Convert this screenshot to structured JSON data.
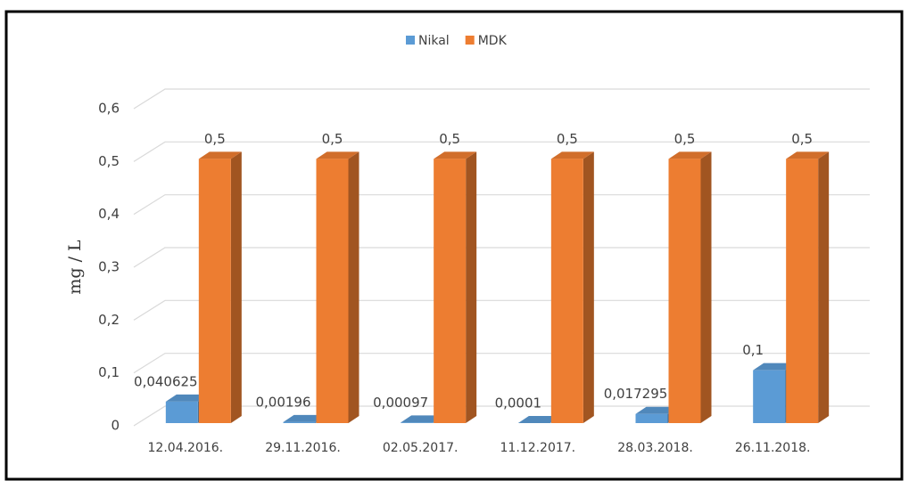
{
  "chart_data": {
    "type": "bar3d",
    "y_label": "mg / L",
    "categories": [
      "12.04.2016.",
      "29.11.2016.",
      "02.05.2017.",
      "11.12.2017.",
      "28.03.2018.",
      "26.11.2018."
    ],
    "series": [
      {
        "name": "Nikal",
        "color": "#5b9bd5",
        "values": [
          0.040625,
          0.00196,
          0.00097,
          0.0001,
          0.017295,
          0.1
        ],
        "value_labels": [
          "0,040625",
          "0,00196",
          "0,00097",
          "0,0001",
          "0,017295",
          "0,1"
        ]
      },
      {
        "name": "MDK",
        "color": "#ed7d31",
        "values": [
          0.5,
          0.5,
          0.5,
          0.5,
          0.5,
          0.5
        ],
        "value_labels": [
          "0,5",
          "0,5",
          "0,5",
          "0,5",
          "0,5",
          "0,5"
        ]
      }
    ],
    "ylim": [
      0,
      0.6
    ],
    "yticks": [
      0,
      {
        "value": 0.1,
        "label": "0,1"
      },
      {
        "value": 0.2,
        "label": "0,2"
      },
      {
        "value": 0.3,
        "label": "0,3"
      },
      {
        "value": 0.4,
        "label": "0,4"
      },
      {
        "value": 0.5,
        "label": "0,5"
      },
      {
        "value": 0.6,
        "label": "0,6"
      }
    ],
    "grid": true,
    "legend": "top"
  }
}
